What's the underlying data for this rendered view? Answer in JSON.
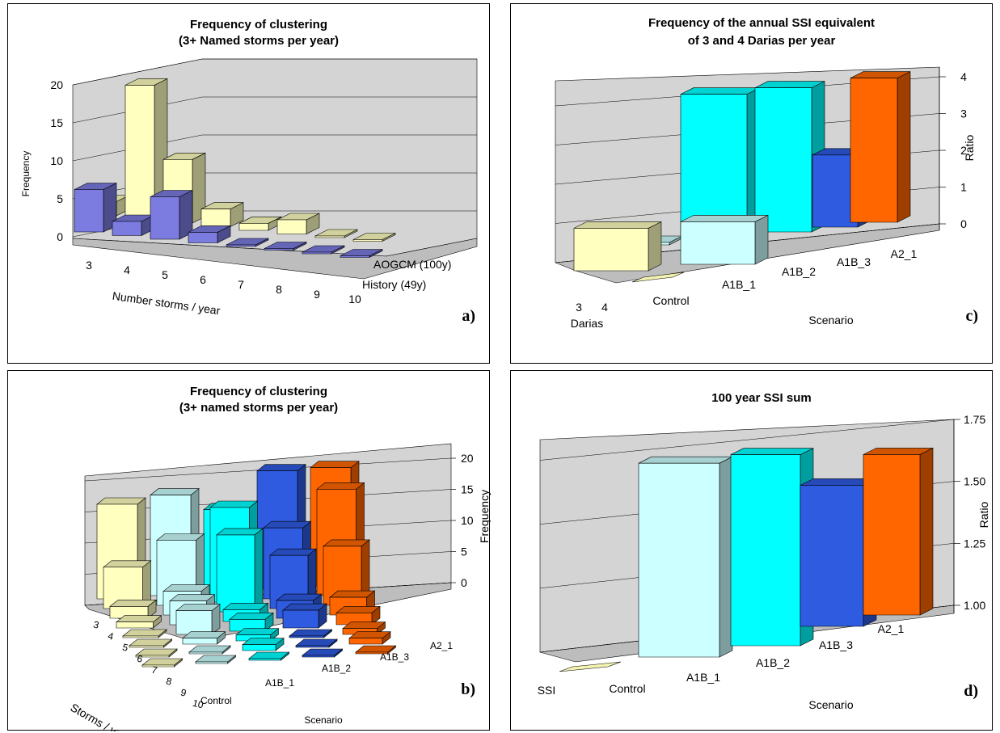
{
  "colors": {
    "light_yellow": "#FFFFC0",
    "olive": "#7B7A4E",
    "periwinkle": "#7B7BE0",
    "light_cyan": "#CCFFFF",
    "cyan": "#00FFFF",
    "blue": "#2E5BE0",
    "orange": "#FF6600",
    "sand": "#F4F2B0",
    "wall": "#D4D4D4"
  },
  "chart_data": [
    {
      "id": "a",
      "type": "bar",
      "title": [
        "Frequency of clustering",
        "(3+ Named storms per year)"
      ],
      "ylabel": "Frequency",
      "xlabel": "Number storms / year",
      "categories": [
        "3",
        "4",
        "5",
        "6",
        "7",
        "8",
        "9",
        "10"
      ],
      "yticks": [
        "0",
        "5",
        "10",
        "15",
        "20"
      ],
      "ylim": [
        0,
        20
      ],
      "series": [
        {
          "name": "History (49y)",
          "values": [
            6,
            2,
            6,
            1.5,
            0,
            0,
            0,
            0
          ]
        },
        {
          "name": "AOGCM (100y)",
          "values": [
            2,
            19,
            9,
            2.5,
            1,
            2,
            0,
            0
          ]
        }
      ],
      "panel_label": "a)"
    },
    {
      "id": "c",
      "type": "bar",
      "title": [
        "Frequency of the annual SSI equivalent",
        "of 3 and 4 Darias  per year"
      ],
      "ylabel": "Ratio",
      "xlabel": "Scenario",
      "depth_axis_label": "Darias",
      "categories": [
        "Control",
        "A1B_1",
        "A1B_2",
        "A1B_3",
        "A2_1"
      ],
      "depth_categories": [
        "3",
        "4"
      ],
      "yticks": [
        "0",
        "1",
        "2",
        "3",
        "4"
      ],
      "ylim": [
        0,
        4
      ],
      "series": [
        {
          "name": "3",
          "values": [
            1,
            1,
            0,
            0,
            0
          ]
        },
        {
          "name": "4",
          "values": [
            0,
            4,
            4,
            2,
            4
          ]
        }
      ],
      "panel_label": "c)"
    },
    {
      "id": "b",
      "type": "bar",
      "title": [
        "Frequency of clustering",
        "(3+ named storms per year)"
      ],
      "ylabel": "Frequency",
      "xlabel": "Scenario",
      "depth_axis_label": "Storms / year",
      "categories": [
        "Control",
        "A1B_1",
        "A1B_2",
        "A1B_3",
        "A2_1"
      ],
      "depth_categories": [
        "3",
        "4",
        "5",
        "6",
        "7",
        "8",
        "9",
        "10"
      ],
      "yticks": [
        "0",
        "5",
        "10",
        "15",
        "20"
      ],
      "ylim": [
        0,
        20
      ],
      "matrix": [
        [
          16,
          7,
          2,
          1,
          0,
          0,
          0,
          0
        ],
        [
          17,
          11,
          4,
          4,
          4,
          1,
          0,
          0
        ],
        [
          14,
          16,
          13,
          2,
          2,
          1,
          1,
          0
        ],
        [
          20,
          12,
          9,
          3,
          3,
          0,
          0,
          0
        ],
        [
          20,
          18,
          10,
          3,
          2,
          1,
          1,
          0
        ]
      ],
      "panel_label": "b)"
    },
    {
      "id": "d",
      "type": "bar",
      "title": [
        "100 year SSI sum"
      ],
      "ylabel": "Ratio",
      "xlabel": "Scenario",
      "depth_categories": [
        "SSI"
      ],
      "categories": [
        "Control",
        "A1B_1",
        "A1B_2",
        "A1B_3",
        "A2_1"
      ],
      "yticks": [
        "1.00",
        "1.25",
        "1.50",
        "1.75"
      ],
      "ylim": [
        1.0,
        1.75
      ],
      "values": [
        1.0,
        1.64,
        1.63,
        1.45,
        1.52
      ],
      "panel_label": "d)"
    }
  ]
}
